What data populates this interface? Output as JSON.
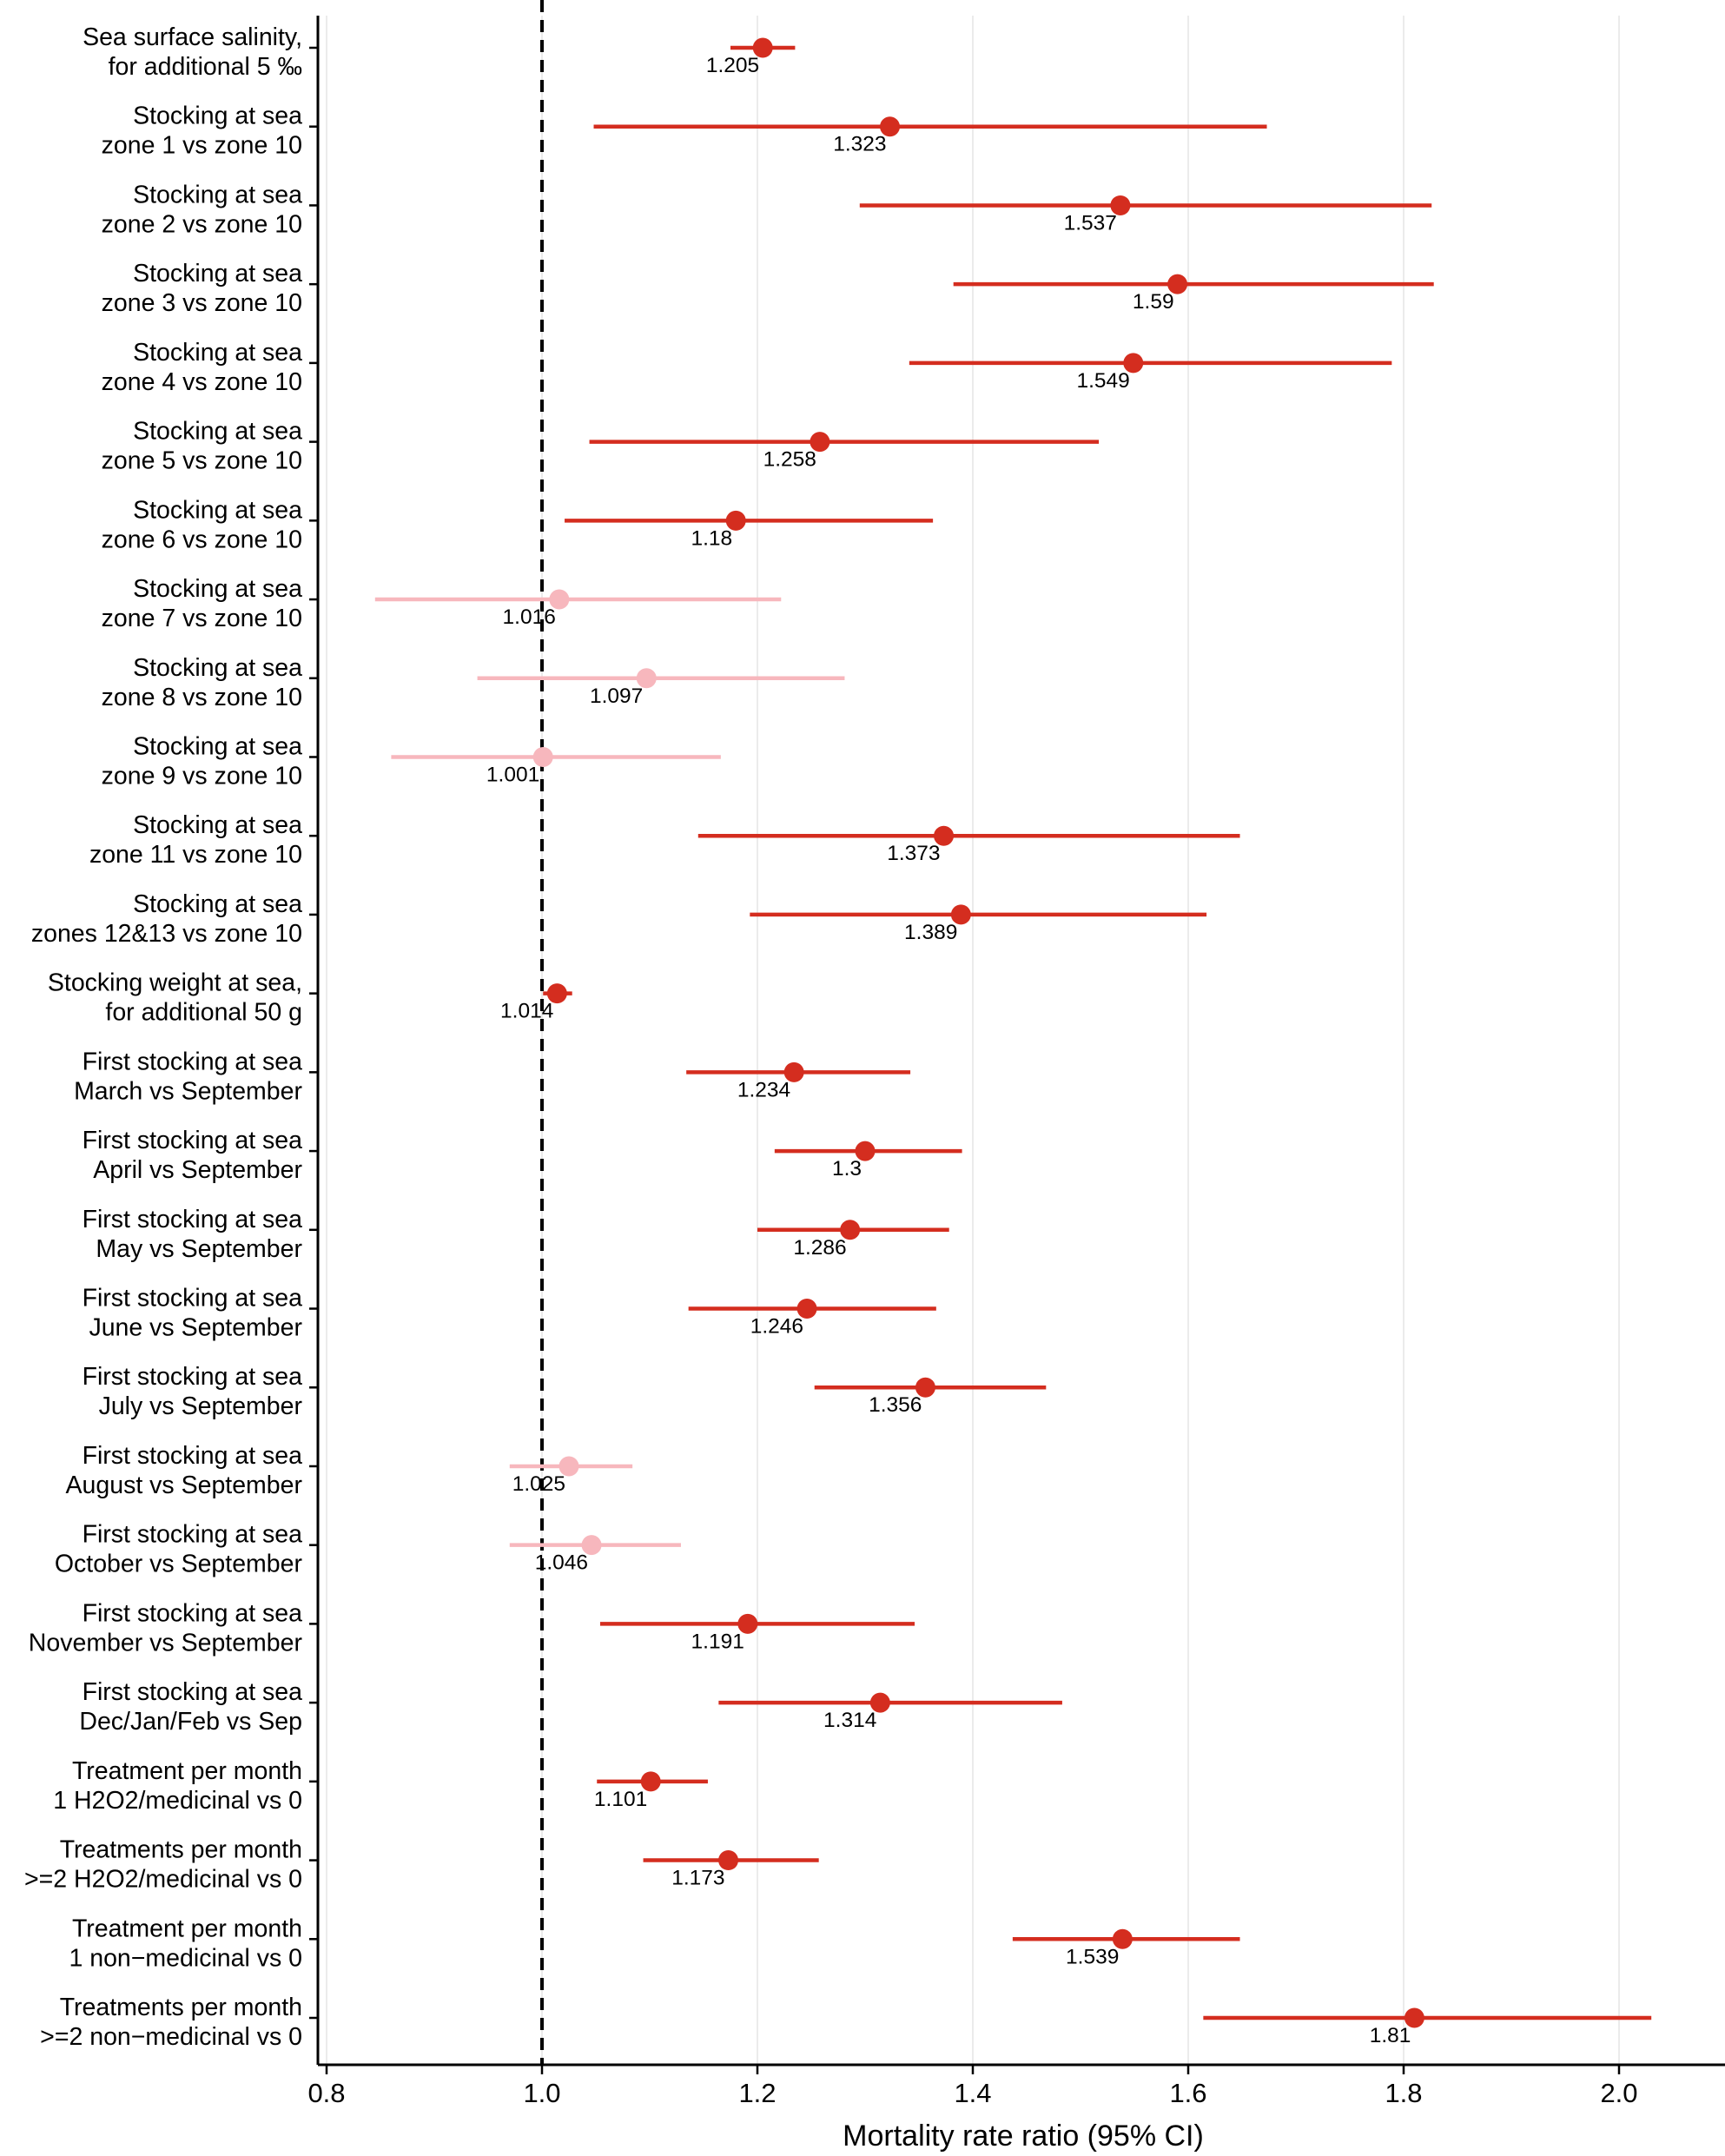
{
  "chart_data": {
    "type": "forest",
    "title": "",
    "xlabel": "Mortality rate ratio (95% CI)",
    "ylabel": "",
    "xlim": [
      0.79,
      2.09
    ],
    "xticks": [
      0.8,
      1.0,
      1.2,
      1.4,
      1.6,
      1.8,
      2.0
    ],
    "xtick_labels": [
      "0.8",
      "1.0",
      "1.2",
      "1.4",
      "1.6",
      "1.8",
      "2.0"
    ],
    "reference_line": 1.0,
    "grid": "vertical",
    "colors": {
      "significant": "#d42d1f",
      "not_significant": "#f7b7bd",
      "reference": "#000000",
      "grid": "#ebebeb"
    },
    "rows": [
      {
        "label_line1": "Sea surface salinity,",
        "label_line2": "for additional 5 ‰",
        "estimate": 1.205,
        "estimate_label": "1.205",
        "lower": 1.175,
        "upper": 1.235,
        "significant": true
      },
      {
        "label_line1": "Stocking at sea",
        "label_line2": "zone 1 vs zone 10",
        "estimate": 1.323,
        "estimate_label": "1.323",
        "lower": 1.048,
        "upper": 1.673,
        "significant": true
      },
      {
        "label_line1": "Stocking at sea",
        "label_line2": "zone 2 vs zone 10",
        "estimate": 1.537,
        "estimate_label": "1.537",
        "lower": 1.295,
        "upper": 1.826,
        "significant": true
      },
      {
        "label_line1": "Stocking at sea",
        "label_line2": "zone 3 vs zone 10",
        "estimate": 1.59,
        "estimate_label": "1.59",
        "lower": 1.382,
        "upper": 1.828,
        "significant": true
      },
      {
        "label_line1": "Stocking at sea",
        "label_line2": "zone 4 vs zone 10",
        "estimate": 1.549,
        "estimate_label": "1.549",
        "lower": 1.341,
        "upper": 1.789,
        "significant": true
      },
      {
        "label_line1": "Stocking at sea",
        "label_line2": "zone 5 vs zone 10",
        "estimate": 1.258,
        "estimate_label": "1.258",
        "lower": 1.044,
        "upper": 1.517,
        "significant": true
      },
      {
        "label_line1": "Stocking at sea",
        "label_line2": "zone 6 vs zone 10",
        "estimate": 1.18,
        "estimate_label": "1.18",
        "lower": 1.021,
        "upper": 1.363,
        "significant": true
      },
      {
        "label_line1": "Stocking at sea",
        "label_line2": "zone 7 vs zone 10",
        "estimate": 1.016,
        "estimate_label": "1.016",
        "lower": 0.845,
        "upper": 1.222,
        "significant": false
      },
      {
        "label_line1": "Stocking at sea",
        "label_line2": "zone 8 vs zone 10",
        "estimate": 1.097,
        "estimate_label": "1.097",
        "lower": 0.94,
        "upper": 1.281,
        "significant": false
      },
      {
        "label_line1": "Stocking at sea",
        "label_line2": "zone 9 vs zone 10",
        "estimate": 1.001,
        "estimate_label": "1.001",
        "lower": 0.86,
        "upper": 1.166,
        "significant": false
      },
      {
        "label_line1": "Stocking at sea",
        "label_line2": "zone 11 vs zone 10",
        "estimate": 1.373,
        "estimate_label": "1.373",
        "lower": 1.145,
        "upper": 1.648,
        "significant": true
      },
      {
        "label_line1": "Stocking at sea",
        "label_line2": "zones 12&13 vs zone 10",
        "estimate": 1.389,
        "estimate_label": "1.389",
        "lower": 1.193,
        "upper": 1.617,
        "significant": true
      },
      {
        "label_line1": "Stocking weight at sea,",
        "label_line2": "for additional 50 g",
        "estimate": 1.014,
        "estimate_label": "1.014",
        "lower": 1.001,
        "upper": 1.028,
        "significant": true
      },
      {
        "label_line1": "First stocking at sea",
        "label_line2": "March vs September",
        "estimate": 1.234,
        "estimate_label": "1.234",
        "lower": 1.134,
        "upper": 1.342,
        "significant": true
      },
      {
        "label_line1": "First stocking at sea",
        "label_line2": "April vs September",
        "estimate": 1.3,
        "estimate_label": "1.3",
        "lower": 1.216,
        "upper": 1.39,
        "significant": true
      },
      {
        "label_line1": "First stocking at sea",
        "label_line2": "May vs September",
        "estimate": 1.286,
        "estimate_label": "1.286",
        "lower": 1.2,
        "upper": 1.378,
        "significant": true
      },
      {
        "label_line1": "First stocking at sea",
        "label_line2": "June vs September",
        "estimate": 1.246,
        "estimate_label": "1.246",
        "lower": 1.136,
        "upper": 1.366,
        "significant": true
      },
      {
        "label_line1": "First stocking at sea",
        "label_line2": "July vs September",
        "estimate": 1.356,
        "estimate_label": "1.356",
        "lower": 1.253,
        "upper": 1.468,
        "significant": true
      },
      {
        "label_line1": "First stocking at sea",
        "label_line2": "August vs September",
        "estimate": 1.025,
        "estimate_label": "1.025",
        "lower": 0.97,
        "upper": 1.084,
        "significant": false
      },
      {
        "label_line1": "First stocking at sea",
        "label_line2": "October vs September",
        "estimate": 1.046,
        "estimate_label": "1.046",
        "lower": 0.97,
        "upper": 1.129,
        "significant": false
      },
      {
        "label_line1": "First stocking at sea",
        "label_line2": "November vs September",
        "estimate": 1.191,
        "estimate_label": "1.191",
        "lower": 1.054,
        "upper": 1.346,
        "significant": true
      },
      {
        "label_line1": "First stocking at sea",
        "label_line2": "Dec/Jan/Feb vs Sep",
        "estimate": 1.314,
        "estimate_label": "1.314",
        "lower": 1.164,
        "upper": 1.483,
        "significant": true
      },
      {
        "label_line1": "Treatment per month",
        "label_line2": "1 H2O2/medicinal vs 0",
        "estimate": 1.101,
        "estimate_label": "1.101",
        "lower": 1.051,
        "upper": 1.154,
        "significant": true
      },
      {
        "label_line1": "Treatments per month",
        "label_line2": ">=2 H2O2/medicinal vs 0",
        "estimate": 1.173,
        "estimate_label": "1.173",
        "lower": 1.094,
        "upper": 1.257,
        "significant": true
      },
      {
        "label_line1": "Treatment per month",
        "label_line2": "1 non−medicinal vs 0",
        "estimate": 1.539,
        "estimate_label": "1.539",
        "lower": 1.437,
        "upper": 1.648,
        "significant": true
      },
      {
        "label_line1": "Treatments per month",
        "label_line2": ">=2 non−medicinal vs 0",
        "estimate": 1.81,
        "estimate_label": "1.81",
        "lower": 1.614,
        "upper": 2.03,
        "significant": true
      }
    ]
  }
}
